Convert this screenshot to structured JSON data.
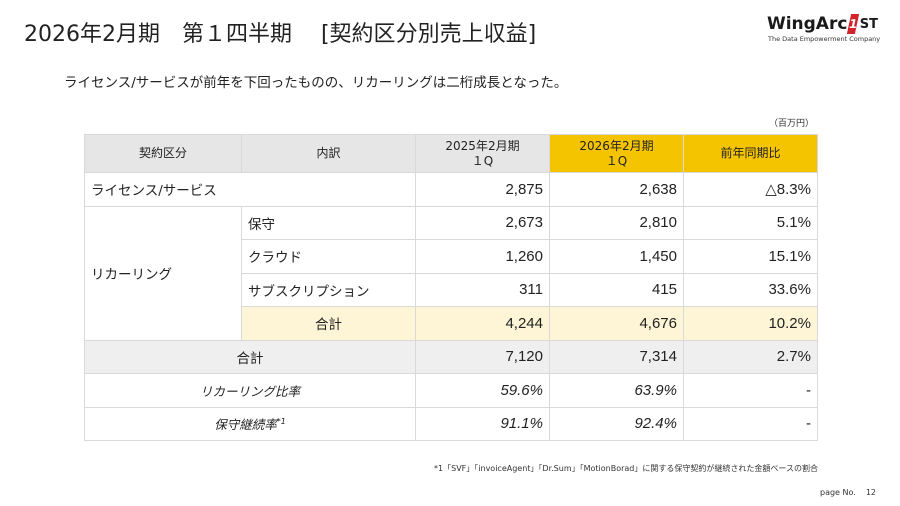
{
  "title": "2026年2月期　第１四半期　 [契約区分別売上収益]",
  "logo": {
    "name": "WingArc",
    "mark": "1",
    "suffix": "ST",
    "tagline": "The Data Empowerment Company"
  },
  "subtitle": "ライセンス/サービスが前年を下回ったものの、リカーリングは二桁成長となった。",
  "unit": "（百万円）",
  "table": {
    "headers": {
      "category": "契約区分",
      "detail": "内訳",
      "prev": "2025年2月期\n１Q",
      "curr": "2026年2月期\n１Q",
      "yoy": "前年同期比"
    },
    "license": {
      "label": "ライセンス/サービス",
      "prev": "2,875",
      "curr": "2,638",
      "yoy": "△8.3%"
    },
    "recurring": {
      "label": "リカーリング",
      "rows": [
        {
          "label": "保守",
          "prev": "2,673",
          "curr": "2,810",
          "yoy": "5.1%"
        },
        {
          "label": "クラウド",
          "prev": "1,260",
          "curr": "1,450",
          "yoy": "15.1%"
        },
        {
          "label": "サブスクリプション",
          "prev": "311",
          "curr": "415",
          "yoy": "33.6%"
        }
      ],
      "subtotal": {
        "label": "合計",
        "prev": "4,244",
        "curr": "4,676",
        "yoy": "10.2%"
      }
    },
    "total": {
      "label": "合計",
      "prev": "7,120",
      "curr": "7,314",
      "yoy": "2.7%"
    },
    "recurring_ratio": {
      "label": "リカーリング比率",
      "prev": "59.6%",
      "curr": "63.9%",
      "yoy": "-"
    },
    "maintenance_rate": {
      "label": "保守継続率",
      "note_mark": "*1",
      "prev": "91.1%",
      "curr": "92.4%",
      "yoy": "-"
    }
  },
  "footnote": "*1「SVF」「invoiceAgent」「Dr.Sum」「MotionBorad」に関する保守契約が継続された金額ベースの割合",
  "page": {
    "label": "page No.",
    "number": "12"
  },
  "colors": {
    "highlight": "#f5c400",
    "subtotal_bg": "#fdf5d5",
    "header_bg": "#e6e6e6",
    "logo_red": "#d2232a"
  }
}
